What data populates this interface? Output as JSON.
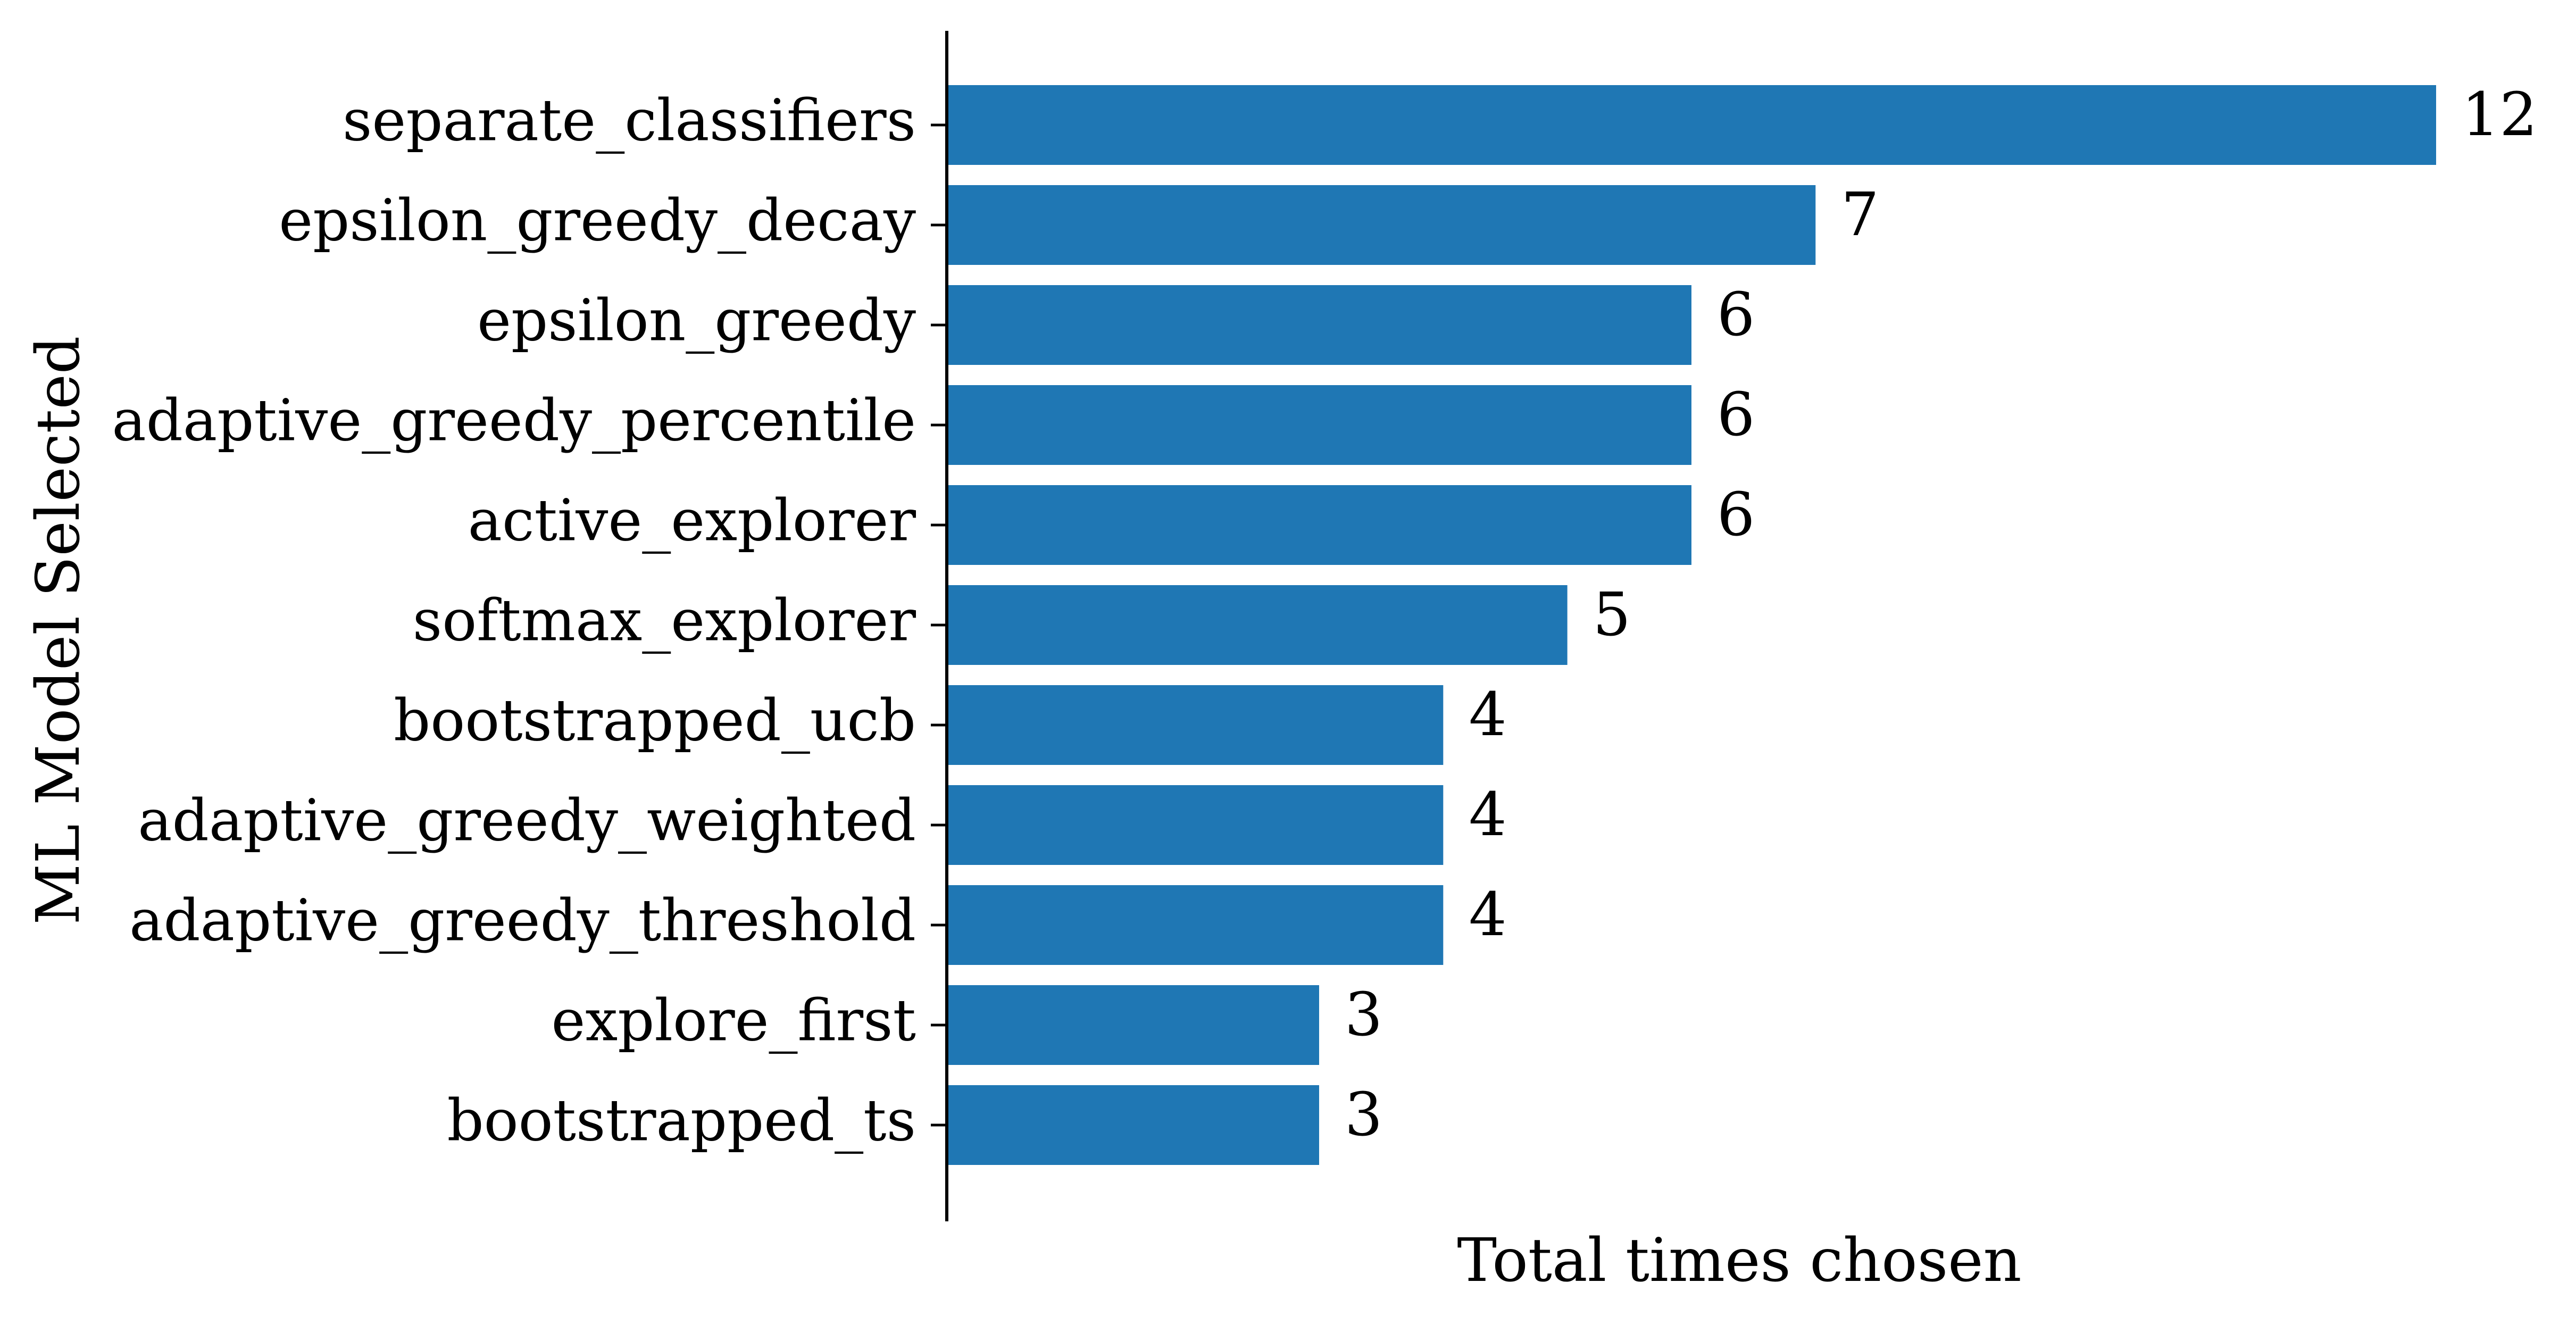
{
  "chart_data": {
    "type": "bar",
    "orientation": "horizontal",
    "title": "",
    "xlabel": "Total times chosen",
    "ylabel": "ML Model Selected",
    "categories": [
      "separate_classifiers",
      "epsilon_greedy_decay",
      "epsilon_greedy",
      "adaptive_greedy_percentile",
      "active_explorer",
      "softmax_explorer",
      "bootstrapped_ucb",
      "adaptive_greedy_weighted",
      "adaptive_greedy_threshold",
      "explore_first",
      "bootstrapped_ts"
    ],
    "values": [
      12,
      7,
      6,
      6,
      6,
      5,
      4,
      4,
      4,
      3,
      3
    ],
    "xlim": [
      0,
      12.6
    ],
    "bar_color": "#1f77b4",
    "data_labels": true,
    "grid": false,
    "x_tick_labels_visible": false
  }
}
